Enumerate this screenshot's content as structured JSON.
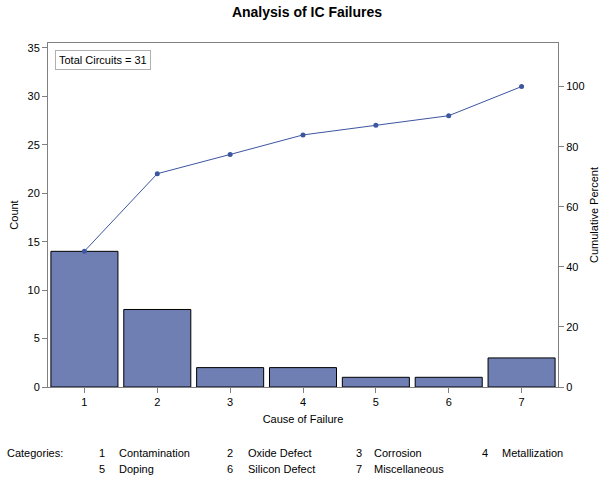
{
  "chart_data": {
    "type": "bar",
    "title": "Analysis of IC Failures",
    "x_label": "Cause of Failure",
    "y_label": "Count",
    "y2_label": "Cumulative Percent",
    "categories": [
      "1",
      "2",
      "3",
      "4",
      "5",
      "6",
      "7"
    ],
    "series": [
      {
        "name": "Count",
        "type": "bar",
        "color": "#6f7eb3",
        "values": [
          14,
          8,
          2,
          2,
          1,
          1,
          3
        ]
      },
      {
        "name": "Cumulative Percent",
        "type": "line",
        "axis": "y2",
        "color": "#3d56a0",
        "marker": "circle",
        "line_style": "solid",
        "values": [
          45.2,
          71.0,
          77.4,
          83.9,
          87.1,
          90.3,
          100
        ]
      }
    ],
    "ylim": [
      0,
      35.5
    ],
    "yticks": [
      0,
      5,
      10,
      15,
      20,
      25,
      30,
      35
    ],
    "y2lim": [
      0,
      114.5
    ],
    "y2ticks": [
      0,
      20,
      40,
      60,
      80,
      100
    ],
    "grid": false,
    "annotations": [
      "Total Circuits = 31"
    ],
    "category_legend": {
      "title": "Categories:",
      "items": [
        {
          "code": "1",
          "label": "Contamination"
        },
        {
          "code": "2",
          "label": "Oxide Defect"
        },
        {
          "code": "3",
          "label": "Corrosion"
        },
        {
          "code": "4",
          "label": "Metallization"
        },
        {
          "code": "5",
          "label": "Doping"
        },
        {
          "code": "6",
          "label": "Silicon Defect"
        },
        {
          "code": "7",
          "label": "Miscellaneous"
        }
      ]
    }
  }
}
